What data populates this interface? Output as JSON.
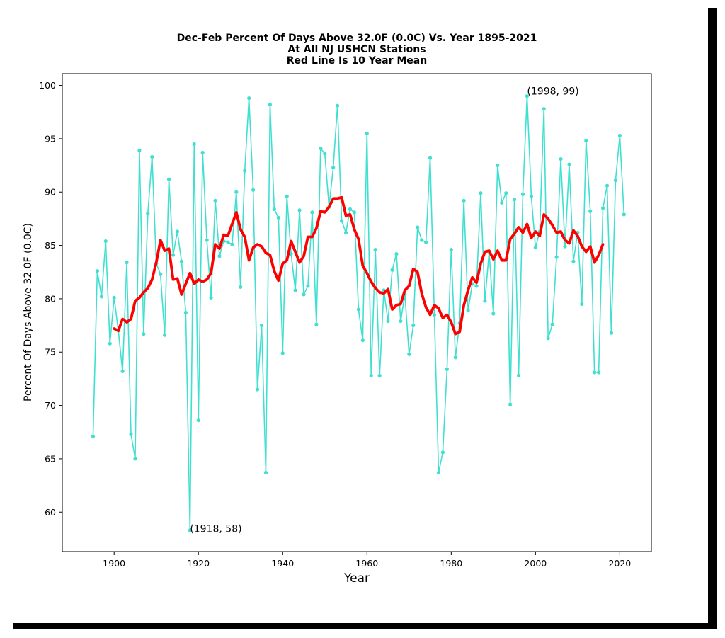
{
  "chart_data": {
    "type": "line",
    "title_lines": [
      "Dec-Feb Percent Of Days Above 32.0F (0.0C) Vs. Year 1895-2021",
      "At All NJ USHCN Stations",
      "Red Line Is 10 Year Mean"
    ],
    "xlabel": "Year",
    "ylabel": "Percent Of Days Above 32.0F (0.0C)",
    "xlim": [
      1887.7,
      2027.5
    ],
    "ylim": [
      56.3,
      101.1
    ],
    "x_ticks": [
      1900,
      1920,
      1940,
      1960,
      1980,
      2000,
      2020
    ],
    "y_ticks": [
      60,
      65,
      70,
      75,
      80,
      85,
      90,
      95,
      100
    ],
    "grid": false,
    "series": [
      {
        "color": "#40e0d0",
        "x": [
          1895,
          1896,
          1897,
          1898,
          1899,
          1900,
          1901,
          1902,
          1903,
          1904,
          1905,
          1906,
          1907,
          1908,
          1909,
          1910,
          1911,
          1912,
          1913,
          1914,
          1915,
          1916,
          1917,
          1918,
          1919,
          1920,
          1921,
          1922,
          1923,
          1924,
          1925,
          1926,
          1927,
          1928,
          1929,
          1930,
          1931,
          1932,
          1933,
          1934,
          1935,
          1936,
          1937,
          1938,
          1939,
          1940,
          1941,
          1942,
          1943,
          1944,
          1945,
          1946,
          1947,
          1948,
          1949,
          1950,
          1951,
          1952,
          1953,
          1954,
          1955,
          1956,
          1957,
          1958,
          1959,
          1960,
          1961,
          1962,
          1963,
          1964,
          1965,
          1966,
          1967,
          1968,
          1969,
          1970,
          1971,
          1972,
          1973,
          1974,
          1975,
          1976,
          1977,
          1978,
          1979,
          1980,
          1981,
          1982,
          1983,
          1984,
          1985,
          1986,
          1987,
          1988,
          1989,
          1990,
          1991,
          1992,
          1993,
          1994,
          1995,
          1996,
          1997,
          1998,
          1999,
          2000,
          2001,
          2002,
          2003,
          2004,
          2005,
          2006,
          2007,
          2008,
          2009,
          2010,
          2011,
          2012,
          2013,
          2014,
          2015,
          2016,
          2017,
          2018,
          2019,
          2020,
          2021
        ],
        "values": [
          67.1,
          82.6,
          80.2,
          85.4,
          75.8,
          80.1,
          77.0,
          73.2,
          83.4,
          67.3,
          65.0,
          93.9,
          76.7,
          88.0,
          93.3,
          83.3,
          82.3,
          76.6,
          91.2,
          84.1,
          86.3,
          83.5,
          78.7,
          58.3,
          94.5,
          68.6,
          93.7,
          85.5,
          80.1,
          89.2,
          84.0,
          85.4,
          85.3,
          85.1,
          90.0,
          81.1,
          92.0,
          98.8,
          90.2,
          71.5,
          77.5,
          63.7,
          98.2,
          88.4,
          87.6,
          74.9,
          89.6,
          84.2,
          80.8,
          88.3,
          80.4,
          81.2,
          88.1,
          77.6,
          94.1,
          93.6,
          88.6,
          92.3,
          98.1,
          87.3,
          86.2,
          88.4,
          88.1,
          79.0,
          76.1,
          95.5,
          72.8,
          84.6,
          72.8,
          80.8,
          77.9,
          82.7,
          84.2,
          77.9,
          80.4,
          74.8,
          77.5,
          86.7,
          85.5,
          85.3,
          93.2,
          78.5,
          63.7,
          65.6,
          73.4,
          84.6,
          74.5,
          77.7,
          89.2,
          78.9,
          81.4,
          81.2,
          89.9,
          79.8,
          84.4,
          78.6,
          92.5,
          89.0,
          89.9,
          70.1,
          89.3,
          72.8,
          89.8,
          99.0,
          89.6,
          84.8,
          86.3,
          97.8,
          76.3,
          77.6,
          83.9,
          93.1,
          84.9,
          92.6,
          83.5,
          86.2,
          79.5,
          94.8,
          88.2,
          73.1,
          73.1,
          88.5,
          90.6,
          76.8,
          91.1,
          95.3,
          87.9
        ]
      },
      {
        "color": "#ff0000",
        "x": [
          1900,
          1901,
          1902,
          1903,
          1904,
          1905,
          1906,
          1907,
          1908,
          1909,
          1910,
          1911,
          1912,
          1913,
          1914,
          1915,
          1916,
          1917,
          1918,
          1919,
          1920,
          1921,
          1922,
          1923,
          1924,
          1925,
          1926,
          1927,
          1928,
          1929,
          1930,
          1931,
          1932,
          1933,
          1934,
          1935,
          1936,
          1937,
          1938,
          1939,
          1940,
          1941,
          1942,
          1943,
          1944,
          1945,
          1946,
          1947,
          1948,
          1949,
          1950,
          1951,
          1952,
          1953,
          1954,
          1955,
          1956,
          1957,
          1958,
          1959,
          1960,
          1961,
          1962,
          1963,
          1964,
          1965,
          1966,
          1967,
          1968,
          1969,
          1970,
          1971,
          1972,
          1973,
          1974,
          1975,
          1976,
          1977,
          1978,
          1979,
          1980,
          1981,
          1982,
          1983,
          1984,
          1985,
          1986,
          1987,
          1988,
          1989,
          1990,
          1991,
          1992,
          1993,
          1994,
          1995,
          1996,
          1997,
          1998,
          1999,
          2000,
          2001,
          2002,
          2003,
          2004,
          2005,
          2006,
          2007,
          2008,
          2009,
          2010,
          2011,
          2012,
          2013,
          2014,
          2015,
          2016
        ],
        "values": [
          77.2,
          77.0,
          78.1,
          77.8,
          78.1,
          79.8,
          80.1,
          80.6,
          81.0,
          81.8,
          83.4,
          85.5,
          84.5,
          84.7,
          81.8,
          81.9,
          80.4,
          81.4,
          82.4,
          81.4,
          81.8,
          81.6,
          81.8,
          82.4,
          85.1,
          84.7,
          86.0,
          85.9,
          87.0,
          88.1,
          86.5,
          85.8,
          83.6,
          84.8,
          85.1,
          84.9,
          84.3,
          84.1,
          82.6,
          81.7,
          83.3,
          83.6,
          85.4,
          84.4,
          83.4,
          84.0,
          85.8,
          85.8,
          86.6,
          88.2,
          88.1,
          88.6,
          89.4,
          89.4,
          89.5,
          87.8,
          87.9,
          86.5,
          85.6,
          83.1,
          82.4,
          81.6,
          81.0,
          80.6,
          80.5,
          80.9,
          79.0,
          79.4,
          79.5,
          80.8,
          81.2,
          82.8,
          82.5,
          80.5,
          79.2,
          78.5,
          79.4,
          79.1,
          78.2,
          78.5,
          77.8,
          76.7,
          76.9,
          79.4,
          80.8,
          82.0,
          81.5,
          83.3,
          84.4,
          84.5,
          83.7,
          84.5,
          83.6,
          83.6,
          85.6,
          86.1,
          86.7,
          86.2,
          87.0,
          85.7,
          86.3,
          85.9,
          87.9,
          87.5,
          86.9,
          86.2,
          86.3,
          85.5,
          85.2,
          86.4,
          85.9,
          84.9,
          84.4,
          84.9,
          83.4,
          84.1,
          85.1
        ]
      }
    ],
    "annotations": [
      {
        "x": 1998,
        "y": 99,
        "text": "(1998, 99)"
      },
      {
        "x": 1918,
        "y": 58,
        "text": "(1918, 58)"
      }
    ]
  }
}
